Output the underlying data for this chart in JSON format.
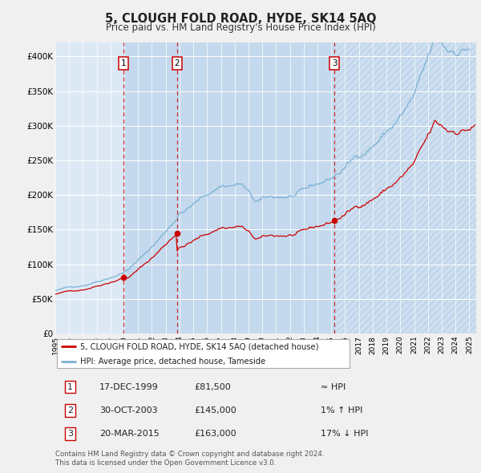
{
  "title": "5, CLOUGH FOLD ROAD, HYDE, SK14 5AQ",
  "subtitle": "Price paid vs. HM Land Registry's House Price Index (HPI)",
  "ylim": [
    0,
    420000
  ],
  "yticks": [
    0,
    50000,
    100000,
    150000,
    200000,
    250000,
    300000,
    350000,
    400000
  ],
  "ytick_labels": [
    "£0",
    "£50K",
    "£100K",
    "£150K",
    "£200K",
    "£250K",
    "£300K",
    "£350K",
    "£400K"
  ],
  "x_start_year": 1995,
  "x_end_year": 2025,
  "sale_prices": [
    81500,
    145000,
    163000
  ],
  "sale_labels": [
    "1",
    "2",
    "3"
  ],
  "hpi_color": "#7ab0d4",
  "price_color": "#cc0000",
  "bg_color": "#dce9f5",
  "legend_entries": [
    "5, CLOUGH FOLD ROAD, HYDE, SK14 5AQ (detached house)",
    "HPI: Average price, detached house, Tameside"
  ],
  "table_rows": [
    [
      "1",
      "17-DEC-1999",
      "£81,500",
      "≈ HPI"
    ],
    [
      "2",
      "30-OCT-2003",
      "£145,000",
      "1% ↑ HPI"
    ],
    [
      "3",
      "20-MAR-2015",
      "£163,000",
      "17% ↓ HPI"
    ]
  ],
  "footnote": "Contains HM Land Registry data © Crown copyright and database right 2024.\nThis data is licensed under the Open Government Licence v3.0."
}
